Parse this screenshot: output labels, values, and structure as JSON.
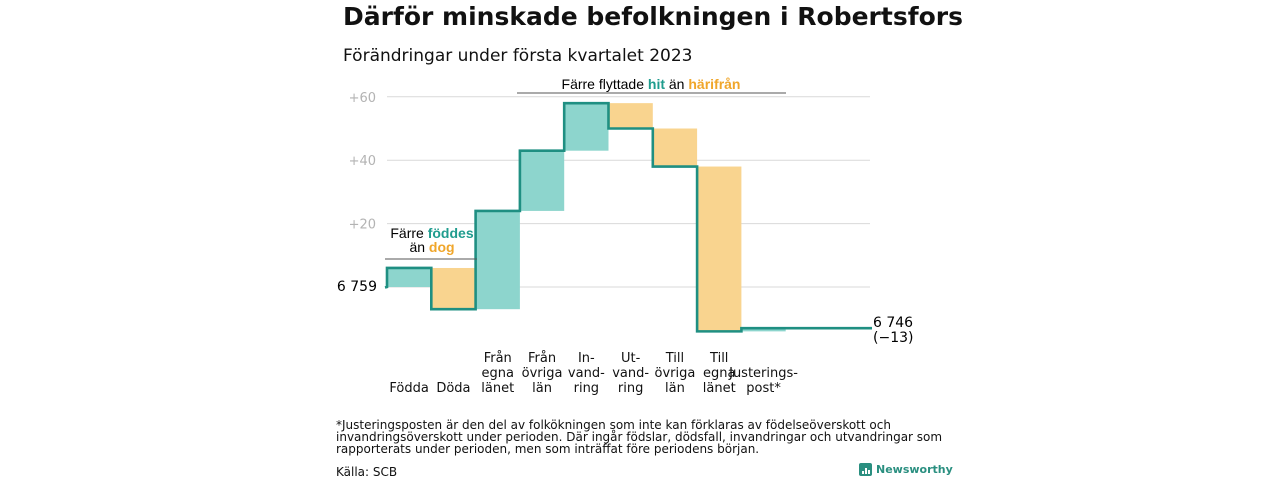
{
  "title": "Därför minskade befolkningen i Robertsfors",
  "subtitle": "Förändringar under första kvartalet 2023",
  "colors": {
    "positive": "#8dd5cd",
    "negative": "#f9d48f",
    "line": "#1f8f82",
    "teal_text": "#1f9c8e",
    "orange_text": "#f0a62a",
    "grid": "#d9d9d9",
    "tick": "#b3b3b3"
  },
  "annotations": {
    "births": {
      "line1_prefix": "Färre ",
      "line1_highlight": "föddes",
      "line2_prefix": "än ",
      "line2_highlight": "dog"
    },
    "migration": {
      "prefix": "Färre flyttade ",
      "highlight1": "hit",
      "middle": " än ",
      "highlight2": "härifrån"
    }
  },
  "start_label": "6 759",
  "end_label": "6 746",
  "end_change": "(−13)",
  "chart_data": {
    "type": "waterfall",
    "title": "Därför minskade befolkningen i Robertsfors",
    "subtitle": "Förändringar under första kvartalet 2023",
    "baseline": 0,
    "start_value": 6759,
    "end_value": 6746,
    "net_change": -13,
    "ylim": [
      -15,
      63
    ],
    "yticks": [
      {
        "value": 20,
        "label": "+20"
      },
      {
        "value": 40,
        "label": "+40"
      },
      {
        "value": 60,
        "label": "+60"
      }
    ],
    "grid": true,
    "categories": [
      {
        "label": [
          "Födda"
        ],
        "value": 6
      },
      {
        "label": [
          "Döda"
        ],
        "value": -13
      },
      {
        "label": [
          "Från",
          "egna",
          "länet"
        ],
        "value": 31
      },
      {
        "label": [
          "Från",
          "övriga",
          "län"
        ],
        "value": 19
      },
      {
        "label": [
          "In-",
          "vand-",
          "ring"
        ],
        "value": 15
      },
      {
        "label": [
          "Ut-",
          "vand-",
          "ring"
        ],
        "value": -8
      },
      {
        "label": [
          "Till",
          "övriga",
          "län"
        ],
        "value": -12
      },
      {
        "label": [
          "Till",
          "egna",
          "länet"
        ],
        "value": -52
      },
      {
        "label": [
          "Justerings-",
          "post*"
        ],
        "value": 1
      }
    ]
  },
  "footnote": "*Justeringsposten är den del av folkökningen som inte kan förklaras av födelseöverskott och invandringsöverskott under perioden. Där ingår födslar, dödsfall, invandringar och utvandringar som rapporterats under perioden, men som inträffat före periodens början.",
  "source": "Källa: SCB",
  "brand": "Newsworthy"
}
